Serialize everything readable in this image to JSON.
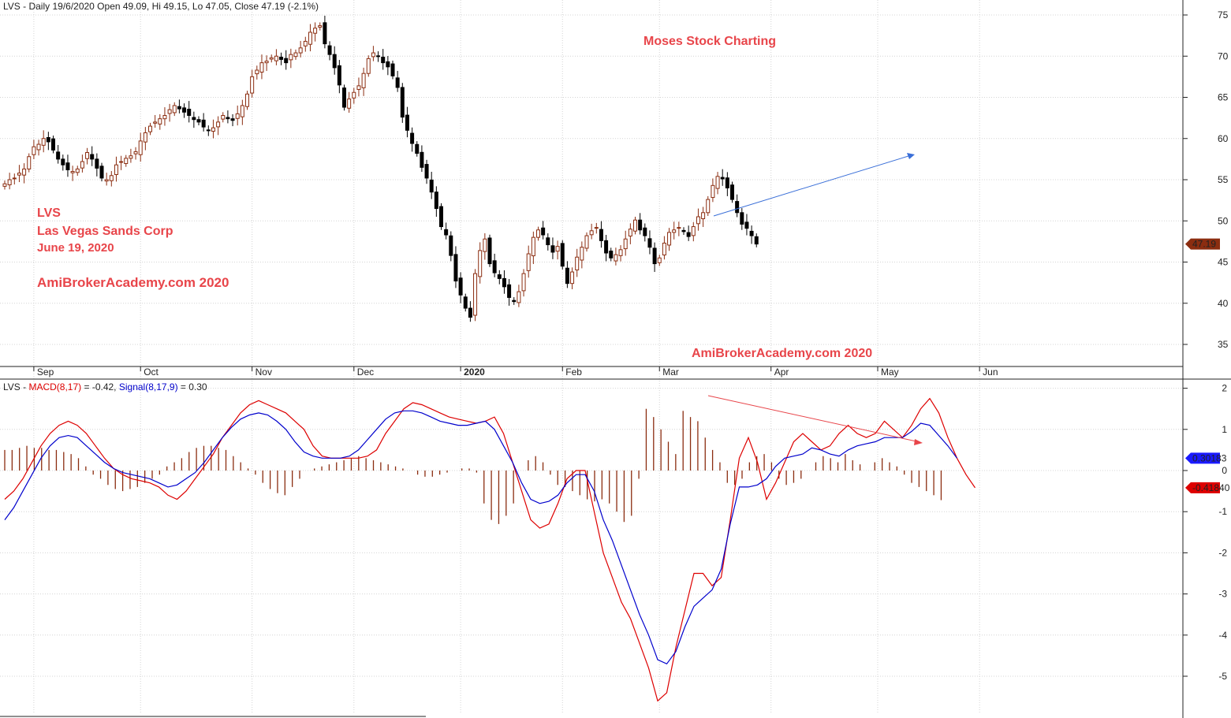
{
  "price_header": {
    "symbol": "LVS",
    "text": " - Daily 19/6/2020 Open 49.09, Hi 49.15, Lo 47.05, Close 47.19 (-2.1%)"
  },
  "macd_header": {
    "symbol": "LVS - ",
    "macd_label": "MACD(8,17)",
    "macd_value": " = -0.42, ",
    "signal_label": "Signal(8,17,9)",
    "signal_value": " = 0.30"
  },
  "annotations": {
    "watermark_top": "Moses Stock Charting",
    "symbol": "LVS",
    "company": "Las Vegas Sands Corp",
    "date": "June 19, 2020",
    "site_left": "AmiBrokerAcademy.com 2020",
    "site_bottom": "AmiBrokerAcademy.com  2020"
  },
  "colors": {
    "up_candle": "#8b2d10",
    "down_candle": "#000000",
    "macd": "#dd0000",
    "signal": "#0000cc",
    "histogram": "#8b2d10",
    "trend_up_arrow": "#3a6fd8",
    "trend_down_arrow": "#e8454a",
    "annotation": "#e8454a",
    "grid": "#d4d4d4"
  },
  "price_tag": "47.19",
  "macd_tag": "-0.41840",
  "signal_tag": "0.30183",
  "chart_data": [
    {
      "type": "candlestick",
      "ylim": [
        32,
        77
      ],
      "y_ticks": [
        "75",
        "70",
        "65",
        "60",
        "55",
        "50",
        "45",
        "40",
        "35"
      ],
      "y_tick_values": [
        75,
        70,
        65,
        60,
        55,
        50,
        45,
        40,
        35
      ],
      "x_labels": [
        {
          "label": "Sep",
          "i": 6
        },
        {
          "label": "Oct",
          "i": 28
        },
        {
          "label": "Nov",
          "i": 51
        },
        {
          "label": "Dec",
          "i": 72
        },
        {
          "label": "2020",
          "i": 94
        },
        {
          "label": "Feb",
          "i": 115
        },
        {
          "label": "Mar",
          "i": 135
        },
        {
          "label": "Apr",
          "i": 158
        },
        {
          "label": "May",
          "i": 180
        },
        {
          "label": "Jun",
          "i": 201
        }
      ],
      "closes": [
        54.5,
        55.0,
        55.2,
        55.8,
        56.3,
        57.8,
        59.0,
        59.3,
        60.0,
        59.6,
        58.6,
        57.5,
        56.8,
        56.2,
        56.0,
        56.3,
        57.2,
        58.3,
        57.5,
        56.4,
        55.2,
        55.0,
        55.5,
        56.8,
        57.2,
        57.6,
        57.9,
        58.4,
        59.7,
        60.7,
        61.5,
        62.0,
        62.4,
        62.8,
        63.5,
        64.0,
        63.6,
        63.2,
        62.8,
        62.3,
        62.0,
        61.4,
        61.0,
        61.3,
        62.0,
        62.8,
        62.4,
        62.2,
        63.0,
        64.0,
        65.4,
        67.5,
        68.3,
        69.2,
        69.4,
        69.8,
        70.0,
        69.6,
        69.2,
        70.2,
        70.4,
        71.0,
        71.8,
        72.9,
        73.4,
        73.7,
        71.5,
        70.2,
        68.6,
        66.5,
        63.8,
        64.8,
        65.6,
        66.4,
        67.9,
        69.7,
        70.4,
        70.0,
        69.2,
        68.7,
        67.6,
        66.2,
        62.6,
        61.0,
        59.4,
        58.2,
        56.5,
        55.2,
        53.5,
        51.5,
        49.3,
        48.3,
        45.8,
        42.7,
        41.0,
        39.4,
        38.3,
        43.6,
        46.4,
        47.8,
        44.8,
        43.7,
        43.0,
        42.0,
        40.7,
        40.2,
        41.4,
        43.6,
        46.0,
        48.0,
        48.9,
        48.3,
        47.1,
        46.2,
        46.9,
        44.5,
        42.4,
        43.8,
        45.6,
        46.8,
        48.2,
        48.8,
        49.2,
        47.6,
        46.1,
        45.5,
        45.9,
        46.5,
        47.8,
        49.0,
        50.1,
        48.9,
        48.2,
        46.8,
        44.8,
        45.5,
        47.3,
        48.6,
        48.9,
        49.2,
        48.7,
        48.1,
        49.3,
        50.5,
        51.0,
        52.6,
        54.3,
        55.4,
        55.1,
        54.0,
        52.6,
        51.0,
        49.6,
        49.1,
        48.2,
        47.19
      ],
      "candle_x_start": 6,
      "candle_x_step": 6.15
    },
    {
      "type": "macd",
      "ylim": [
        -5.9,
        2.1
      ],
      "y_ticks": [
        "2",
        "1",
        "0",
        "-1",
        "-2",
        "-3",
        "-4",
        "-5"
      ],
      "y_tick_values": [
        2,
        1,
        0,
        -1,
        -2,
        -3,
        -4,
        -5
      ],
      "series": [
        {
          "name": "MACD(8,17)",
          "values": [
            -0.7,
            -0.5,
            -0.2,
            0.2,
            0.6,
            0.9,
            1.1,
            1.2,
            1.1,
            0.9,
            0.6,
            0.3,
            0.05,
            -0.1,
            -0.2,
            -0.25,
            -0.3,
            -0.4,
            -0.6,
            -0.7,
            -0.5,
            -0.2,
            0.1,
            0.4,
            0.8,
            1.1,
            1.4,
            1.6,
            1.7,
            1.6,
            1.5,
            1.4,
            1.2,
            1.0,
            0.6,
            0.35,
            0.3,
            0.3,
            0.3,
            0.3,
            0.35,
            0.5,
            0.9,
            1.2,
            1.5,
            1.65,
            1.6,
            1.5,
            1.4,
            1.3,
            1.25,
            1.2,
            1.15,
            1.2,
            1.3,
            0.9,
            0.2,
            -0.5,
            -1.2,
            -1.4,
            -1.3,
            -0.8,
            -0.2,
            0.0,
            0.0,
            -1.0,
            -2.0,
            -2.6,
            -3.2,
            -3.6,
            -4.2,
            -4.8,
            -5.6,
            -5.4,
            -4.3,
            -3.4,
            -2.5,
            -2.5,
            -2.8,
            -2.6,
            -1.2,
            0.3,
            0.8,
            0.2,
            -0.7,
            -0.3,
            0.2,
            0.7,
            0.9,
            0.7,
            0.5,
            0.6,
            0.9,
            1.1,
            0.9,
            0.8,
            0.9,
            1.2,
            1.0,
            0.8,
            1.1,
            1.5,
            1.75,
            1.4,
            0.8,
            0.3,
            -0.1,
            -0.42
          ],
          "x_start": 6,
          "x_step": 11.5
        },
        {
          "name": "Signal(8,17,9)",
          "values": [
            -1.2,
            -0.9,
            -0.5,
            -0.1,
            0.3,
            0.6,
            0.8,
            0.85,
            0.8,
            0.6,
            0.4,
            0.2,
            0.05,
            -0.05,
            -0.1,
            -0.15,
            -0.2,
            -0.3,
            -0.4,
            -0.35,
            -0.2,
            -0.05,
            0.2,
            0.5,
            0.8,
            1.05,
            1.25,
            1.35,
            1.4,
            1.35,
            1.2,
            1.0,
            0.7,
            0.45,
            0.35,
            0.3,
            0.3,
            0.3,
            0.35,
            0.5,
            0.75,
            1.0,
            1.25,
            1.4,
            1.45,
            1.45,
            1.4,
            1.3,
            1.2,
            1.15,
            1.1,
            1.1,
            1.15,
            1.2,
            1.0,
            0.6,
            0.2,
            -0.3,
            -0.7,
            -0.8,
            -0.75,
            -0.6,
            -0.3,
            -0.1,
            -0.1,
            -0.5,
            -1.2,
            -1.7,
            -2.3,
            -2.9,
            -3.5,
            -4.0,
            -4.6,
            -4.7,
            -4.4,
            -3.8,
            -3.3,
            -3.1,
            -2.9,
            -2.4,
            -1.3,
            -0.4,
            -0.4,
            -0.35,
            -0.2,
            0.1,
            0.3,
            0.35,
            0.4,
            0.55,
            0.5,
            0.4,
            0.35,
            0.5,
            0.6,
            0.65,
            0.7,
            0.8,
            0.8,
            0.8,
            0.95,
            1.15,
            1.1,
            0.85,
            0.6,
            0.3
          ],
          "x_start": 6,
          "x_step": 11.5
        },
        {
          "name": "histogram",
          "values": [
            0.5,
            0.5,
            0.55,
            0.6,
            0.55,
            0.55,
            0.5,
            0.5,
            0.45,
            0.4,
            0.3,
            0.1,
            -0.1,
            -0.2,
            -0.35,
            -0.45,
            -0.5,
            -0.45,
            -0.4,
            -0.3,
            -0.2,
            -0.1,
            0.1,
            0.2,
            0.3,
            0.45,
            0.55,
            0.6,
            0.6,
            0.55,
            0.5,
            0.35,
            0.2,
            0.05,
            -0.1,
            -0.3,
            -0.45,
            -0.55,
            -0.6,
            -0.4,
            -0.2,
            0.0,
            0.05,
            0.1,
            0.15,
            0.2,
            0.25,
            0.3,
            0.35,
            0.3,
            0.25,
            0.2,
            0.15,
            0.1,
            0.05,
            0.0,
            -0.1,
            -0.15,
            -0.15,
            -0.1,
            -0.05,
            0.0,
            0.05,
            0.05,
            -0.05,
            -0.8,
            -1.2,
            -1.3,
            -1.1,
            -0.8,
            0.0,
            0.25,
            0.35,
            0.2,
            -0.1,
            -0.35,
            -0.4,
            -0.5,
            -0.6,
            -0.7,
            -0.75,
            -0.7,
            -0.8,
            -1.0,
            -1.25,
            -1.1,
            -0.2,
            1.5,
            1.3,
            1.0,
            0.7,
            0.4,
            1.45,
            1.3,
            1.2,
            0.8,
            0.5,
            0.2,
            -0.3,
            -0.35,
            -0.2,
            0.2,
            0.35,
            0.4,
            0.2,
            -0.2,
            -0.35,
            -0.3,
            -0.2,
            0.0,
            0.2,
            0.35,
            0.3,
            0.2,
            0.4,
            0.25,
            0.15,
            0.0,
            0.2,
            0.3,
            0.2,
            0.1,
            -0.1,
            -0.3,
            -0.4,
            -0.5,
            -0.6,
            -0.72
          ],
          "x_start": 6,
          "x_step": 9.35
        }
      ]
    }
  ]
}
